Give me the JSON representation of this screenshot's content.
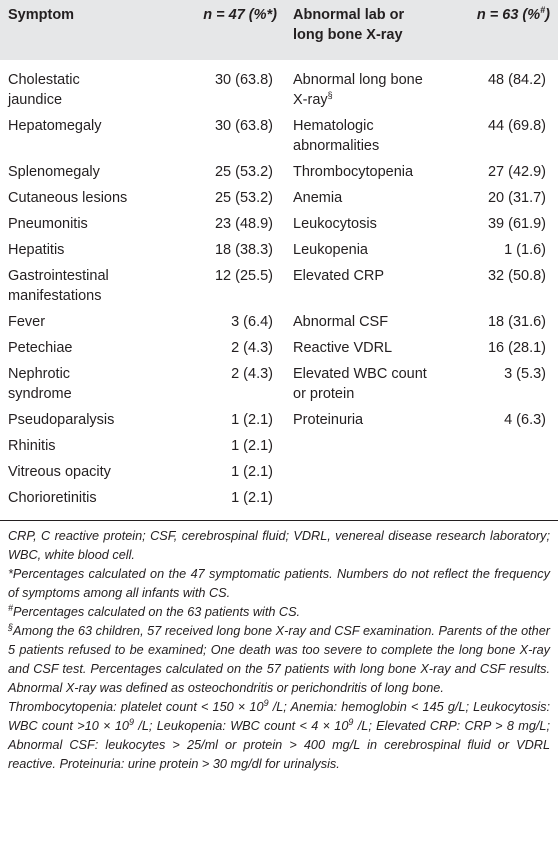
{
  "columns": {
    "symptom": "Symptom",
    "n1": "n = 47 (%*)",
    "lab": "Abnormal lab or long bone X-ray",
    "n2_prefix": "n = 63 (%",
    "n2_sup": "#",
    "n2_suffix": ")"
  },
  "rows": [
    {
      "symptom": "Cholestatic jaundice",
      "n1": "30 (63.8)",
      "lab": "Abnormal long bone X-ray",
      "lab_sup": "§",
      "n2": "48 (84.2)"
    },
    {
      "symptom": "Hepatomegaly",
      "n1": "30 (63.8)",
      "lab": "Hematologic abnormalities",
      "lab_sup": "",
      "n2": "44 (69.8)"
    },
    {
      "symptom": "Splenomegaly",
      "n1": "25 (53.2)",
      "lab": "Thrombocytopenia",
      "lab_sup": "",
      "n2": "27 (42.9)"
    },
    {
      "symptom": "Cutaneous lesions",
      "n1": "25 (53.2)",
      "lab": "Anemia",
      "lab_sup": "",
      "n2": "20 (31.7)"
    },
    {
      "symptom": "Pneumonitis",
      "n1": "23 (48.9)",
      "lab": "Leukocytosis",
      "lab_sup": "",
      "n2": "39 (61.9)"
    },
    {
      "symptom": "Hepatitis",
      "n1": "18 (38.3)",
      "lab": "Leukopenia",
      "lab_sup": "",
      "n2": "1 (1.6)"
    },
    {
      "symptom": "Gastrointestinal manifestations",
      "n1": "12 (25.5)",
      "lab": "Elevated CRP",
      "lab_sup": "",
      "n2": "32 (50.8)"
    },
    {
      "symptom": "Fever",
      "n1": "3 (6.4)",
      "lab": "Abnormal CSF",
      "lab_sup": "",
      "n2": "18 (31.6)"
    },
    {
      "symptom": "Petechiae",
      "n1": "2 (4.3)",
      "lab": "Reactive VDRL",
      "lab_sup": "",
      "n2": "16 (28.1)"
    },
    {
      "symptom": "Nephrotic syndrome",
      "n1": "2 (4.3)",
      "lab": "Elevated WBC count or protein",
      "lab_sup": "",
      "n2": "3 (5.3)"
    },
    {
      "symptom": "Pseudoparalysis",
      "n1": "1 (2.1)",
      "lab": "Proteinuria",
      "lab_sup": "",
      "n2": "4 (6.3)"
    },
    {
      "symptom": "Rhinitis",
      "n1": "1 (2.1)",
      "lab": "",
      "lab_sup": "",
      "n2": ""
    },
    {
      "symptom": "Vitreous opacity",
      "n1": "1 (2.1)",
      "lab": "",
      "lab_sup": "",
      "n2": ""
    },
    {
      "symptom": "Chorioretinitis",
      "n1": "1 (2.1)",
      "lab": "",
      "lab_sup": "",
      "n2": ""
    }
  ],
  "footnotes": {
    "abbrev": "CRP, C reactive protein; CSF, cerebrospinal fluid; VDRL, venereal disease research laboratory; WBC, white blood cell.",
    "star": "*Percentages calculated on the 47 symptomatic patients. Numbers do not reflect the frequency of symptoms among all infants with CS.",
    "hash_mark": "#",
    "hash": "Percentages calculated on the 63 patients with CS.",
    "section_mark": "§",
    "section": "Among the 63 children, 57 received long bone X-ray and CSF examination. Parents of the other 5 patients refused to be examined; One death was too severe to complete the long bone X-ray and CSF test. Percentages calculated on the 57 patients with long bone X-ray and CSF results. Abnormal X-ray was defined as osteochondritis or perichondritis of long bone.",
    "defs": [
      "Thrombocytopenia: platelet count < 150 × 10",
      "9",
      " /L; Anemia: hemoglobin < 145 g/L; Leukocytosis: WBC count >10 × 10",
      "9",
      " /L; Leukopenia: WBC count < 4 × 10",
      "9",
      " /L; Elevated CRP: CRP > 8 mg/L; Abnormal CSF: leukocytes > 25/ml or protein > 400 mg/L in cerebrospinal fluid or VDRL reactive. Proteinuria: urine protein > 30 mg/dl for urinalysis."
    ]
  }
}
